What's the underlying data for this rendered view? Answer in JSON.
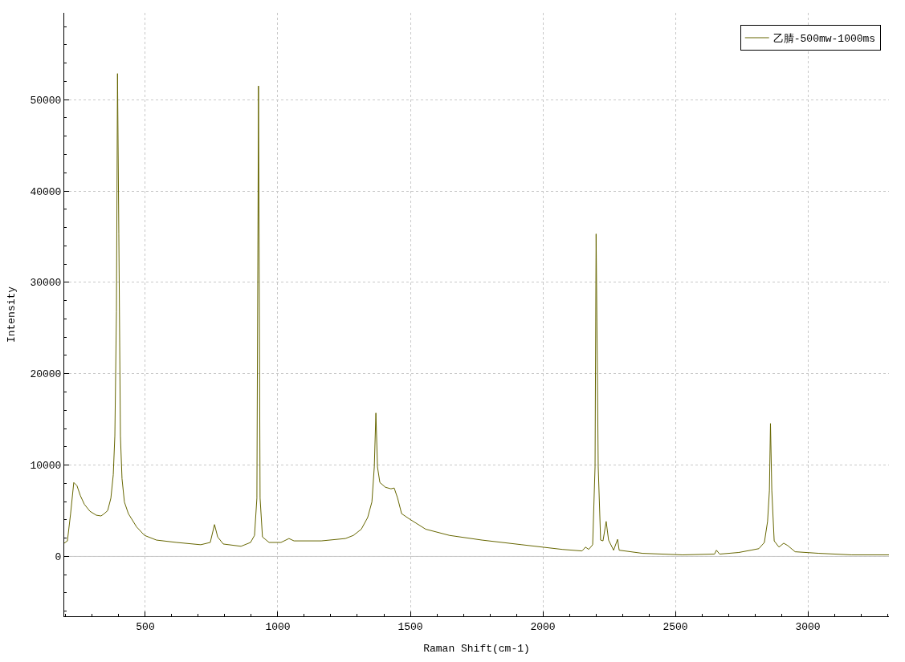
{
  "chart_data": {
    "type": "line",
    "xlabel": "Raman Shift(cm-1)",
    "ylabel": "Intensity",
    "x": [
      194,
      206,
      218,
      230,
      242,
      255,
      270,
      291,
      315,
      333,
      345,
      358,
      370,
      379,
      385,
      391,
      395,
      400,
      406,
      412,
      421,
      436,
      467,
      497,
      542,
      618,
      709,
      745,
      761,
      773,
      794,
      861,
      897,
      912,
      921,
      927,
      933,
      942,
      967,
      1012,
      1042,
      1061,
      1164,
      1255,
      1285,
      1315,
      1339,
      1355,
      1364,
      1370,
      1376,
      1385,
      1406,
      1427,
      1439,
      1452,
      1467,
      1497,
      1558,
      1648,
      1770,
      1921,
      2073,
      2148,
      2161,
      2173,
      2188,
      2197,
      2201,
      2209,
      2218,
      2227,
      2239,
      2248,
      2267,
      2282,
      2288,
      2376,
      2527,
      2648,
      2655,
      2667,
      2739,
      2785,
      2815,
      2836,
      2848,
      2855,
      2859,
      2864,
      2873,
      2891,
      2909,
      2924,
      2952,
      3042,
      3164,
      3306
    ],
    "series": [
      {
        "name": "乙腈-500mw-1000ms",
        "color": "#666600",
        "values": [
          1450,
          1700,
          4680,
          8090,
          7740,
          6640,
          5700,
          4940,
          4510,
          4430,
          4680,
          5020,
          6380,
          8940,
          13200,
          26800,
          52850,
          35300,
          13200,
          8510,
          5960,
          4680,
          3230,
          2300,
          1790,
          1530,
          1280,
          1530,
          3490,
          2130,
          1360,
          1110,
          1530,
          2300,
          6380,
          51500,
          6380,
          2130,
          1530,
          1530,
          1960,
          1700,
          1700,
          1960,
          2300,
          2980,
          4260,
          5960,
          9790,
          15700,
          9790,
          8090,
          7570,
          7400,
          7490,
          6380,
          4680,
          4090,
          2980,
          2300,
          1790,
          1280,
          770,
          600,
          1020,
          770,
          1280,
          9790,
          35300,
          9790,
          1790,
          1700,
          3830,
          1790,
          680,
          1870,
          680,
          340,
          170,
          255,
          680,
          255,
          430,
          680,
          850,
          1530,
          3830,
          7230,
          14550,
          7230,
          1700,
          1020,
          1450,
          1190,
          510,
          340,
          170,
          170
        ]
      }
    ],
    "xlim": [
      194,
      3306
    ],
    "xticks": [
      {
        "value": 200,
        "label": null
      },
      {
        "value": 300,
        "label": null
      },
      {
        "value": 400,
        "label": null
      },
      500,
      {
        "value": 600,
        "label": null
      },
      {
        "value": 700,
        "label": null
      },
      {
        "value": 800,
        "label": null
      },
      {
        "value": 900,
        "label": null
      },
      1000,
      {
        "value": 1100,
        "label": null
      },
      {
        "value": 1200,
        "label": null
      },
      {
        "value": 1300,
        "label": null
      },
      {
        "value": 1400,
        "label": null
      },
      1500,
      {
        "value": 1600,
        "label": null
      },
      {
        "value": 1700,
        "label": null
      },
      {
        "value": 1800,
        "label": null
      },
      {
        "value": 1900,
        "label": null
      },
      2000,
      {
        "value": 2100,
        "label": null
      },
      {
        "value": 2200,
        "label": null
      },
      {
        "value": 2300,
        "label": null
      },
      {
        "value": 2400,
        "label": null
      },
      2500,
      {
        "value": 2600,
        "label": null
      },
      {
        "value": 2700,
        "label": null
      },
      {
        "value": 2800,
        "label": null
      },
      {
        "value": 2900,
        "label": null
      },
      3000,
      {
        "value": 3100,
        "label": null
      },
      {
        "value": 3200,
        "label": null
      },
      {
        "value": 3300,
        "label": null
      }
    ],
    "ylim": [
      -6550,
      59500
    ],
    "yticks": [
      {
        "value": -6000,
        "label": null
      },
      {
        "value": -4000,
        "label": null
      },
      {
        "value": -2000,
        "label": null
      },
      0,
      {
        "value": 2000,
        "label": null
      },
      {
        "value": 4000,
        "label": null
      },
      {
        "value": 6000,
        "label": null
      },
      {
        "value": 8000,
        "label": null
      },
      10000,
      {
        "value": 12000,
        "label": null
      },
      {
        "value": 14000,
        "label": null
      },
      {
        "value": 16000,
        "label": null
      },
      {
        "value": 18000,
        "label": null
      },
      20000,
      {
        "value": 22000,
        "label": null
      },
      {
        "value": 24000,
        "label": null
      },
      {
        "value": 26000,
        "label": null
      },
      {
        "value": 28000,
        "label": null
      },
      30000,
      {
        "value": 32000,
        "label": null
      },
      {
        "value": 34000,
        "label": null
      },
      {
        "value": 36000,
        "label": null
      },
      {
        "value": 38000,
        "label": null
      },
      40000,
      {
        "value": 42000,
        "label": null
      },
      {
        "value": 44000,
        "label": null
      },
      {
        "value": 46000,
        "label": null
      },
      {
        "value": 48000,
        "label": null
      },
      50000,
      {
        "value": 52000,
        "label": null
      },
      {
        "value": 54000,
        "label": null
      },
      {
        "value": 56000,
        "label": null
      },
      {
        "value": 58000,
        "label": null
      }
    ],
    "ref_lines": [
      {
        "axis": "y",
        "value": 0,
        "color": "#c8c8c8"
      }
    ],
    "grid": true,
    "legend": "top right",
    "line_style": "solid",
    "marker": "none"
  }
}
